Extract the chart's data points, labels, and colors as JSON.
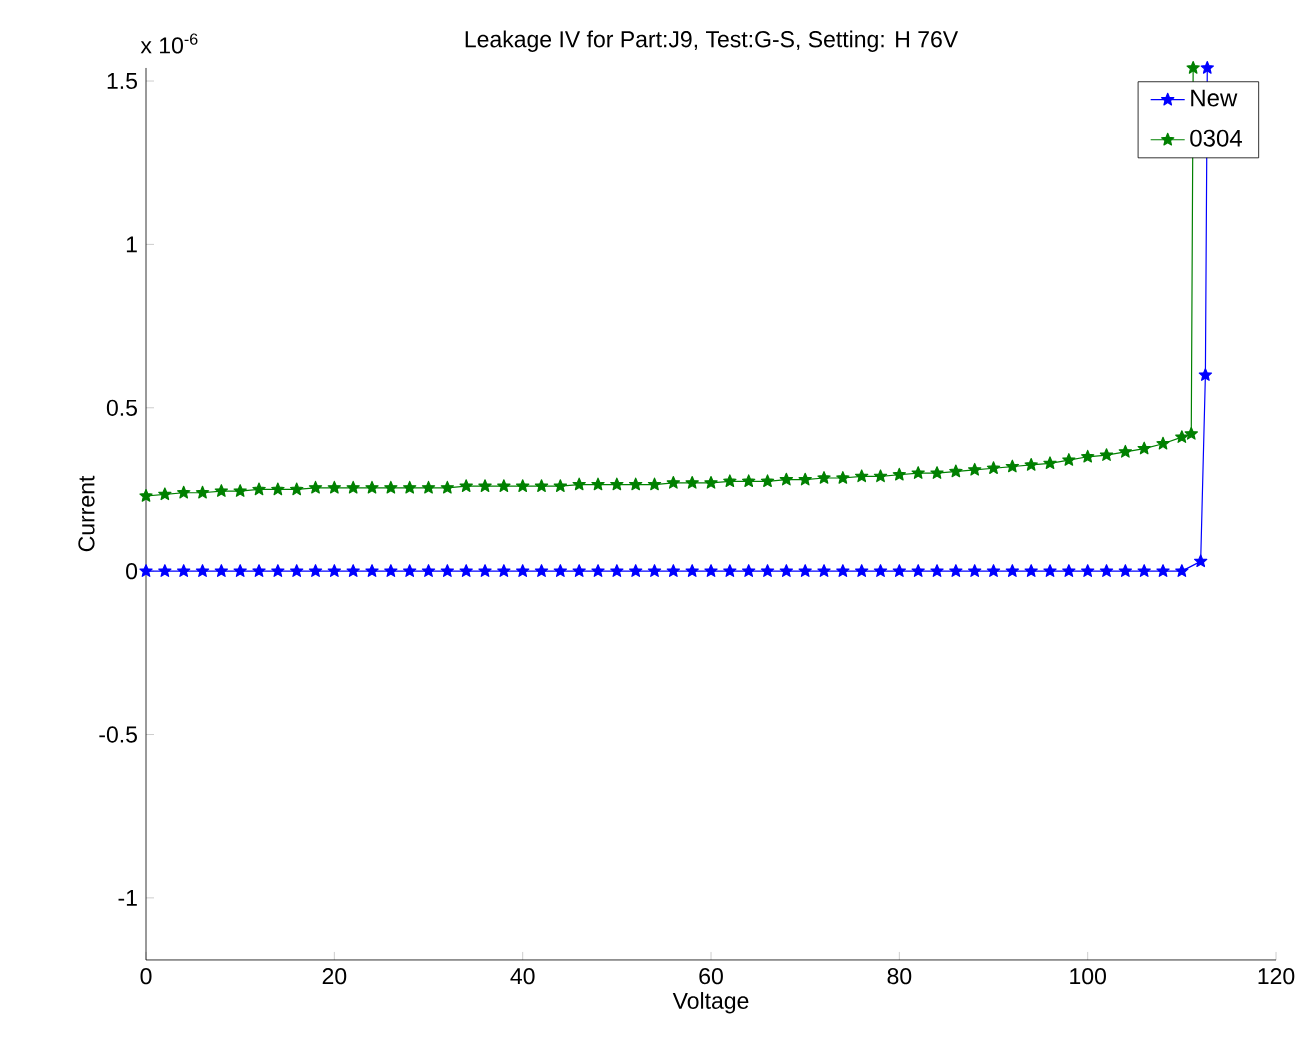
{
  "chart_data": {
    "type": "line",
    "title": "Leakage IV for Part:J9, Test:G-S, Setting: H 76V",
    "xlabel": "Voltage",
    "ylabel": "Current",
    "annotations": [
      "x 10$^{-6}$"
    ],
    "xlim": [
      0,
      120
    ],
    "xticks": [
      0,
      20,
      40,
      60,
      80,
      100,
      120
    ],
    "ylim": [
      -1.19,
      1.54
    ],
    "yticks": [
      -1,
      -0.5,
      0,
      0.5,
      1,
      1.5
    ],
    "grid": false,
    "legend": "top right",
    "marker": "star",
    "line_style": "solid",
    "series": [
      {
        "name": "New",
        "color": "#0000ff",
        "x": [
          0,
          2,
          4,
          6,
          8,
          10,
          12,
          14,
          16,
          18,
          20,
          22,
          24,
          26,
          28,
          30,
          32,
          34,
          36,
          38,
          40,
          42,
          44,
          46,
          48,
          50,
          52,
          54,
          56,
          58,
          60,
          62,
          64,
          66,
          68,
          70,
          72,
          74,
          76,
          78,
          80,
          82,
          84,
          86,
          88,
          90,
          92,
          94,
          96,
          98,
          100,
          102,
          104,
          106,
          108,
          110,
          112,
          112.5,
          112.7
        ],
        "values": [
          0,
          0,
          0,
          0,
          0,
          0,
          0,
          0,
          0,
          0,
          0,
          0,
          0,
          0,
          0,
          0,
          0,
          0,
          0,
          0,
          0,
          0,
          0,
          0,
          0,
          0,
          0,
          0,
          0,
          0,
          0,
          0,
          0,
          0,
          0,
          0,
          0,
          0,
          0,
          0,
          0,
          0,
          0,
          0,
          0,
          0,
          0,
          0,
          0,
          0,
          0,
          0,
          0,
          0,
          0,
          0,
          0.03,
          0.6,
          1.54
        ]
      },
      {
        "name": "0304",
        "color": "#008000",
        "x": [
          0,
          2,
          4,
          6,
          8,
          10,
          12,
          14,
          16,
          18,
          20,
          22,
          24,
          26,
          28,
          30,
          32,
          34,
          36,
          38,
          40,
          42,
          44,
          46,
          48,
          50,
          52,
          54,
          56,
          58,
          60,
          62,
          64,
          66,
          68,
          70,
          72,
          74,
          76,
          78,
          80,
          82,
          84,
          86,
          88,
          90,
          92,
          94,
          96,
          98,
          100,
          102,
          104,
          106,
          108,
          110,
          111,
          111.2
        ],
        "values": [
          0.23,
          0.235,
          0.24,
          0.24,
          0.245,
          0.245,
          0.25,
          0.25,
          0.25,
          0.255,
          0.255,
          0.255,
          0.255,
          0.255,
          0.255,
          0.255,
          0.255,
          0.26,
          0.26,
          0.26,
          0.26,
          0.26,
          0.26,
          0.265,
          0.265,
          0.265,
          0.265,
          0.265,
          0.27,
          0.27,
          0.27,
          0.275,
          0.275,
          0.275,
          0.28,
          0.28,
          0.285,
          0.285,
          0.29,
          0.29,
          0.295,
          0.3,
          0.3,
          0.305,
          0.31,
          0.315,
          0.32,
          0.325,
          0.33,
          0.34,
          0.35,
          0.355,
          0.365,
          0.375,
          0.39,
          0.41,
          0.42,
          1.54
        ]
      }
    ]
  }
}
